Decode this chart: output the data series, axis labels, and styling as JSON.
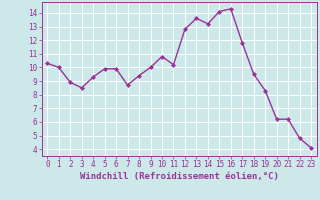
{
  "x": [
    0,
    1,
    2,
    3,
    4,
    5,
    6,
    7,
    8,
    9,
    10,
    11,
    12,
    13,
    14,
    15,
    16,
    17,
    18,
    19,
    20,
    21,
    22,
    23
  ],
  "y": [
    10.3,
    10.0,
    8.9,
    8.5,
    9.3,
    9.9,
    9.9,
    8.7,
    9.4,
    10.0,
    10.8,
    10.2,
    12.8,
    13.6,
    13.2,
    14.1,
    14.3,
    11.8,
    9.5,
    8.3,
    6.2,
    6.2,
    4.8,
    4.1
  ],
  "line_color": "#993399",
  "marker": "D",
  "marker_size": 2.0,
  "linewidth": 1.0,
  "bg_color": "#cce8e8",
  "grid_color": "#b0d8d8",
  "xlabel": "Windchill (Refroidissement éolien,°C)",
  "ylim": [
    3.5,
    14.8
  ],
  "xlim": [
    -0.5,
    23.5
  ],
  "yticks": [
    4,
    5,
    6,
    7,
    8,
    9,
    10,
    11,
    12,
    13,
    14
  ],
  "xticks": [
    0,
    1,
    2,
    3,
    4,
    5,
    6,
    7,
    8,
    9,
    10,
    11,
    12,
    13,
    14,
    15,
    16,
    17,
    18,
    19,
    20,
    21,
    22,
    23
  ],
  "xlabel_fontsize": 6.5,
  "tick_fontsize": 5.5,
  "label_color": "#993399",
  "tick_color": "#993399",
  "spine_color": "#993399",
  "grid_white_color": "#c8e6e6"
}
